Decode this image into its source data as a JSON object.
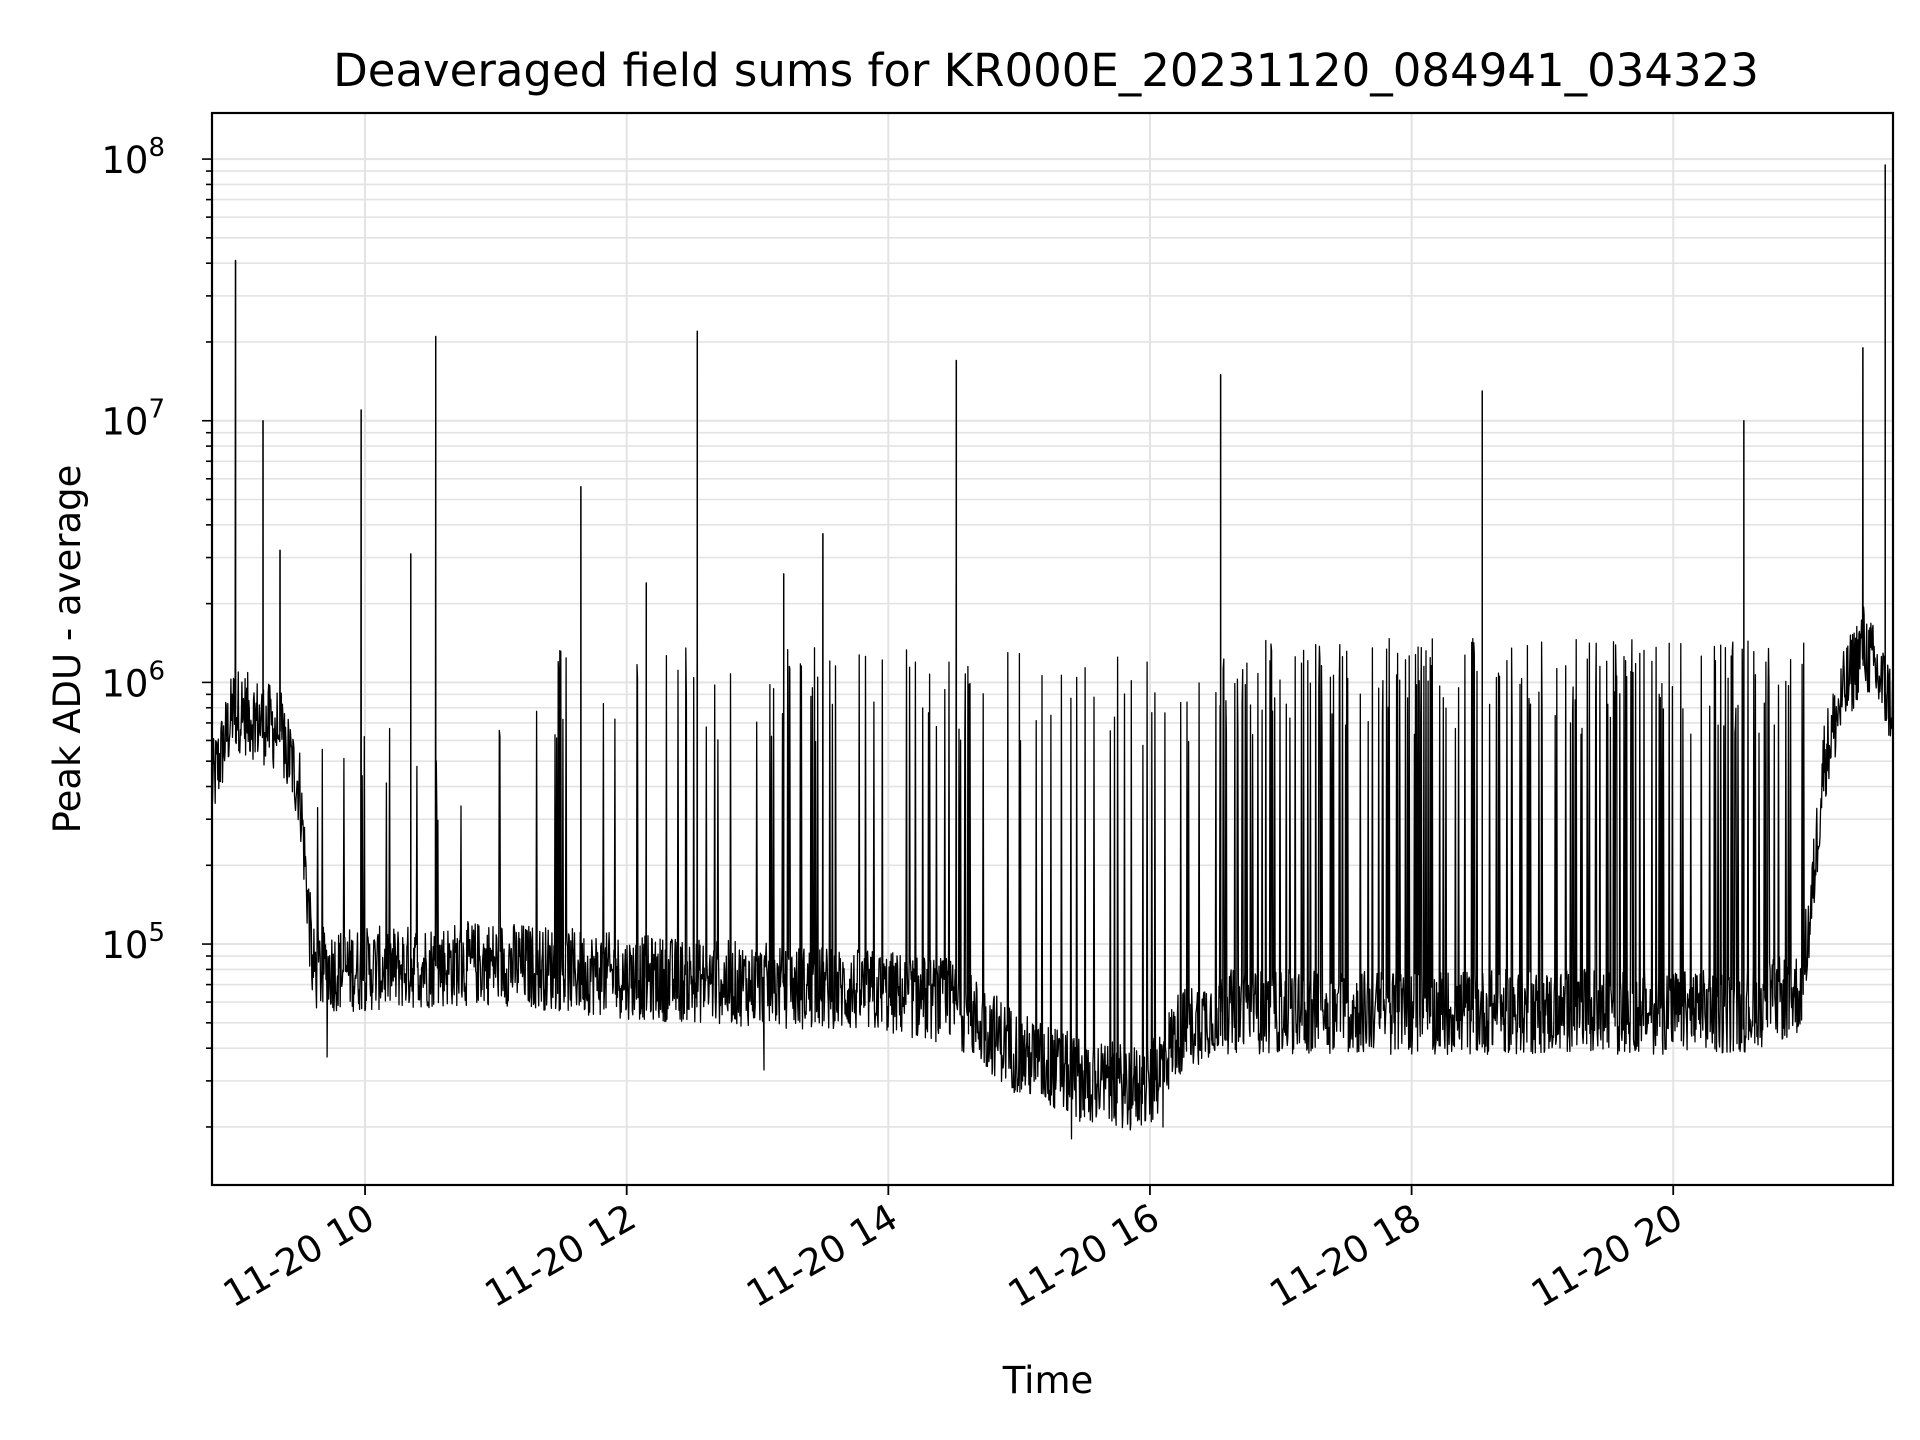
{
  "chart_data": {
    "type": "line",
    "title": "Deaveraged field sums for KR000E_20231120_084941_034323",
    "xlabel": "Time",
    "ylabel": "Peak ADU - average",
    "yscale": "log",
    "ylim": [
      12000,
      150000000
    ],
    "xlim_hours": [
      8.83,
      21.68
    ],
    "grid": true,
    "line_color": "#000000",
    "x_ticks": [
      {
        "hour": 10,
        "label": "11-20 10"
      },
      {
        "hour": 12,
        "label": "11-20 12"
      },
      {
        "hour": 14,
        "label": "11-20 14"
      },
      {
        "hour": 16,
        "label": "11-20 16"
      },
      {
        "hour": 18,
        "label": "11-20 18"
      },
      {
        "hour": 20,
        "label": "11-20 20"
      }
    ],
    "y_ticks": [
      {
        "value": 100000,
        "base": "10",
        "exp": "5"
      },
      {
        "value": 1000000,
        "base": "10",
        "exp": "6"
      },
      {
        "value": 10000000,
        "base": "10",
        "exp": "7"
      },
      {
        "value": 100000000,
        "base": "10",
        "exp": "8"
      }
    ],
    "baseline_hours": [
      8.83,
      9.0,
      9.35,
      9.5,
      9.6,
      10.0,
      11.0,
      12.0,
      13.0,
      14.0,
      14.5,
      15.0,
      15.5,
      16.0,
      16.2,
      16.5,
      17.0,
      18.0,
      19.0,
      20.0,
      20.5,
      20.97,
      21.05,
      21.15,
      21.3,
      21.45,
      21.55,
      21.68
    ],
    "baseline_values": [
      400000,
      800000,
      650000,
      400000,
      80000,
      80000,
      85000,
      75000,
      70000,
      65000,
      60000,
      38000,
      30000,
      28000,
      45000,
      55000,
      55000,
      55000,
      55000,
      55000,
      55000,
      65000,
      130000,
      500000,
      900000,
      1400000,
      1100000,
      800000
    ],
    "envelope_segments": [
      {
        "start": 9.0,
        "end": 9.4,
        "value": 900000
      },
      {
        "start": 9.6,
        "end": 11.3,
        "value": 650000
      },
      {
        "start": 11.3,
        "end": 13.0,
        "value": 1300000
      },
      {
        "start": 13.0,
        "end": 15.5,
        "value": 1300000
      },
      {
        "start": 15.5,
        "end": 16.5,
        "value": 1200000
      },
      {
        "start": 16.5,
        "end": 21.0,
        "value": 1400000
      }
    ],
    "spikes": [
      {
        "hour": 9.01,
        "value": 41000000
      },
      {
        "hour": 9.22,
        "value": 10000000
      },
      {
        "hour": 9.35,
        "value": 3200000
      },
      {
        "hour": 9.97,
        "value": 11000000
      },
      {
        "hour": 10.35,
        "value": 3100000
      },
      {
        "hour": 10.54,
        "value": 21000000
      },
      {
        "hour": 11.65,
        "value": 5600000
      },
      {
        "hour": 12.15,
        "value": 2400000
      },
      {
        "hour": 12.54,
        "value": 22000000
      },
      {
        "hour": 13.2,
        "value": 2600000
      },
      {
        "hour": 13.5,
        "value": 3700000
      },
      {
        "hour": 14.52,
        "value": 17000000
      },
      {
        "hour": 16.54,
        "value": 15000000
      },
      {
        "hour": 18.54,
        "value": 13000000
      },
      {
        "hour": 20.54,
        "value": 10000000
      },
      {
        "hour": 21.45,
        "value": 19000000
      },
      {
        "hour": 21.62,
        "value": 95000000
      }
    ],
    "dips": [
      {
        "hour": 9.71,
        "value": 37000
      },
      {
        "hour": 13.05,
        "value": 33000
      },
      {
        "hour": 15.4,
        "value": 18000
      },
      {
        "hour": 15.85,
        "value": 19500
      },
      {
        "hour": 16.1,
        "value": 20000
      }
    ]
  }
}
